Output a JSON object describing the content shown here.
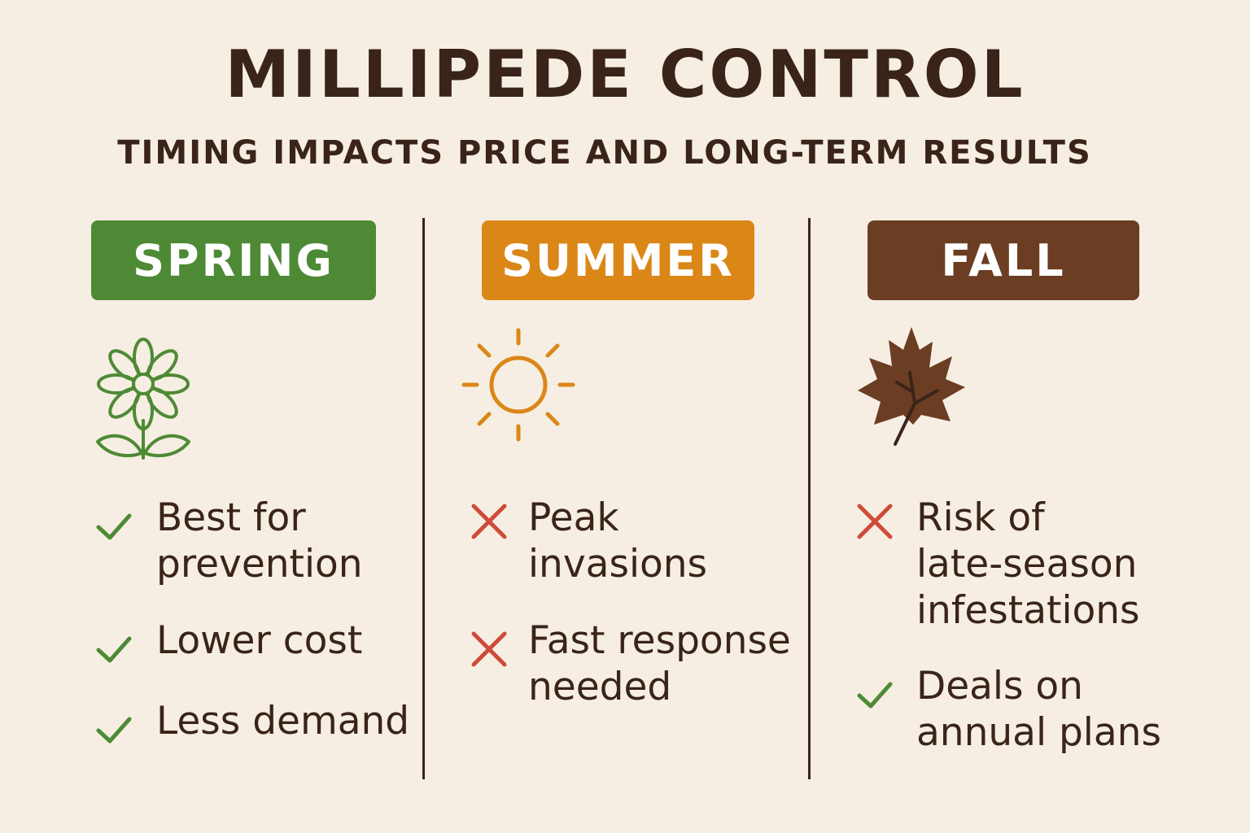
{
  "title": "MILLIPEDE CONTROL",
  "subtitle": "TIMING IMPACTS PRICE AND LONG-TERM RESULTS",
  "colors": {
    "background": "#f6eee3",
    "text": "#3a2419",
    "spring": "#4e8a35",
    "summer": "#db8718",
    "fall": "#6b3d22",
    "check": "#4e8a35",
    "cross": "#cf4a38"
  },
  "seasons": [
    {
      "label": "SPRING",
      "icon": "flower-icon",
      "items": [
        {
          "mark": "check",
          "line1": "Best for",
          "line2": "prevention",
          "line3": ""
        },
        {
          "mark": "check",
          "line1": "Lower cost",
          "line2": "",
          "line3": ""
        },
        {
          "mark": "check",
          "line1": "Less demand",
          "line2": "",
          "line3": ""
        }
      ]
    },
    {
      "label": "SUMMER",
      "icon": "sun-icon",
      "items": [
        {
          "mark": "cross",
          "line1": "Peak",
          "line2": "invasions",
          "line3": ""
        },
        {
          "mark": "cross",
          "line1": "Fast response",
          "line2": "needed",
          "line3": ""
        }
      ]
    },
    {
      "label": "FALL",
      "icon": "leaf-icon",
      "items": [
        {
          "mark": "cross",
          "line1": "Risk of",
          "line2": "late-season",
          "line3": "infestations"
        },
        {
          "mark": "check",
          "line1": "Deals on",
          "line2": "annual plans",
          "line3": ""
        }
      ]
    }
  ]
}
